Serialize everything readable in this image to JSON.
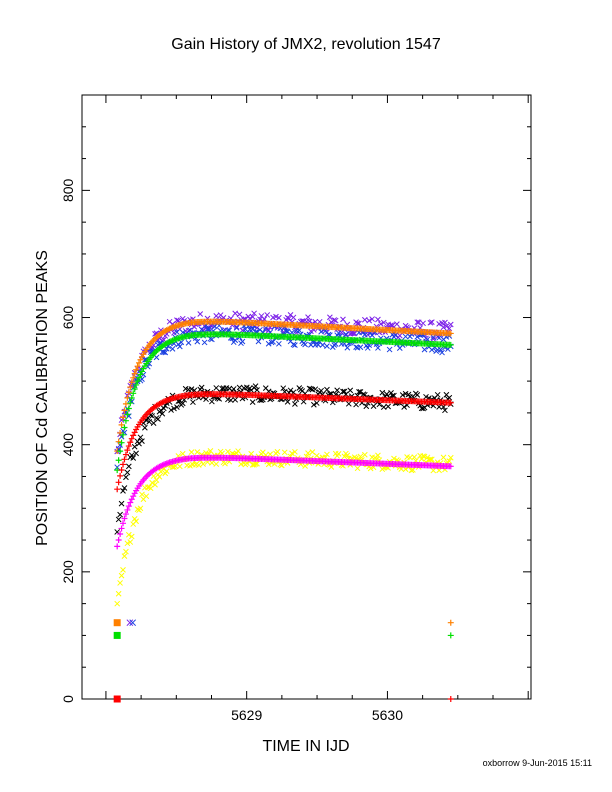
{
  "chart_data": {
    "type": "scatter",
    "title": "Gain History of JMX2, revolution 1547",
    "xlabel": "TIME IN IJD",
    "ylabel": "POSITION OF Cd CALIBRATION PEAKS",
    "credit": "oxborrow  9-Jun-2015 15:11",
    "xlim": [
      5627.83,
      5631.02
    ],
    "ylim": [
      0,
      950
    ],
    "x_ticks": [
      5629,
      5630
    ],
    "y_ticks": [
      0,
      200,
      400,
      600,
      800
    ],
    "grid": false,
    "legend": "none",
    "x_start": 5628.08,
    "x_end": 5630.45,
    "series": [
      {
        "color": "#7b1fe8",
        "marker": "x",
        "scatter": 14,
        "plateau": 598,
        "tau": 0.15,
        "drift": -20,
        "base": 385
      },
      {
        "color": "#1a3fe0",
        "marker": "x",
        "scatter": 14,
        "plateau": 578,
        "tau": 0.15,
        "drift": -20,
        "base": 370
      },
      {
        "color": "#000000",
        "marker": "x",
        "scatter": 13,
        "plateau": 484,
        "tau": 0.15,
        "drift": -18,
        "base": 270
      },
      {
        "color": "#ffff00",
        "marker": "x",
        "scatter": 12,
        "plateau": 384,
        "tau": 0.14,
        "drift": -15,
        "base": 140
      },
      {
        "color": "#ff8000",
        "marker": "+",
        "scatter": 0,
        "plateau": 597,
        "tau": 0.14,
        "drift": -22,
        "base": 390
      },
      {
        "color": "#00e000",
        "marker": "+",
        "scatter": 0,
        "plateau": 577,
        "tau": 0.14,
        "drift": -20,
        "base": 360
      },
      {
        "color": "#ff0000",
        "marker": "+",
        "scatter": 0,
        "plateau": 482,
        "tau": 0.14,
        "drift": -16,
        "base": 330
      },
      {
        "color": "#ff00ff",
        "marker": "+",
        "scatter": 0,
        "plateau": 382,
        "tau": 0.14,
        "drift": -16,
        "base": 240
      }
    ],
    "stray_points": [
      {
        "x": 5628.08,
        "y": 120,
        "color": "#ff8000",
        "marker": "square"
      },
      {
        "x": 5628.08,
        "y": 100,
        "color": "#00e000",
        "marker": "square"
      },
      {
        "x": 5628.08,
        "y": 0,
        "color": "#ff0000",
        "marker": "square"
      },
      {
        "x": 5628.17,
        "y": 120,
        "color": "#7b1fe8",
        "marker": "x"
      },
      {
        "x": 5628.19,
        "y": 120,
        "color": "#1a3fe0",
        "marker": "x"
      },
      {
        "x": 5630.45,
        "y": 120,
        "color": "#ff8000",
        "marker": "+"
      },
      {
        "x": 5630.45,
        "y": 100,
        "color": "#00e000",
        "marker": "+"
      },
      {
        "x": 5630.45,
        "y": 0,
        "color": "#ff0000",
        "marker": "+"
      }
    ]
  }
}
